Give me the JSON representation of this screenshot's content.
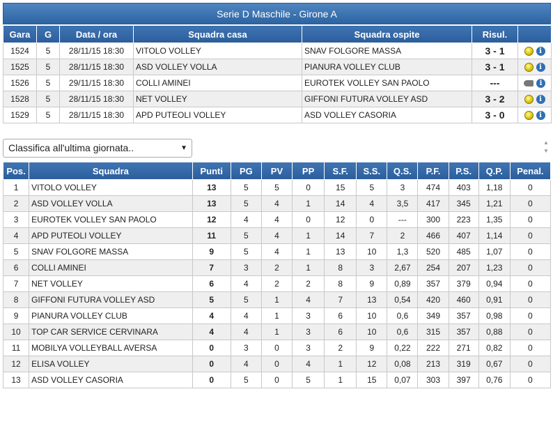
{
  "header": {
    "title": "Serie D Maschile - Girone A"
  },
  "matches": {
    "columns": [
      "Gara",
      "G",
      "Data / ora",
      "Squadra casa",
      "Squadra ospite",
      "Risul.",
      ""
    ],
    "rows": [
      {
        "gara": "1524",
        "g": "5",
        "data": "28/11/15 18:30",
        "casa": "VITOLO VOLLEY",
        "ospite": "SNAV FOLGORE MASSA",
        "risultato": "3 - 1",
        "status_icon": "volleyball-icon"
      },
      {
        "gara": "1525",
        "g": "5",
        "data": "28/11/15 18:30",
        "casa": "ASD VOLLEY VOLLA",
        "ospite": "PIANURA VOLLEY CLUB",
        "risultato": "3 - 1",
        "status_icon": "volleyball-icon"
      },
      {
        "gara": "1526",
        "g": "5",
        "data": "29/11/15 18:30",
        "casa": "COLLI AMINEI",
        "ospite": "EUROTEK VOLLEY SAN PAOLO",
        "risultato": "---",
        "status_icon": "whistle-icon"
      },
      {
        "gara": "1528",
        "g": "5",
        "data": "28/11/15 18:30",
        "casa": "NET VOLLEY",
        "ospite": "GIFFONI FUTURA VOLLEY ASD",
        "risultato": "3 - 2",
        "status_icon": "volleyball-icon"
      },
      {
        "gara": "1529",
        "g": "5",
        "data": "28/11/15 18:30",
        "casa": "APD PUTEOLI VOLLEY",
        "ospite": "ASD VOLLEY CASORIA",
        "risultato": "3 - 0",
        "status_icon": "volleyball-icon"
      }
    ]
  },
  "classifica_select": {
    "selected": "Classifica all'ultima giornata..",
    "arrow": "▼"
  },
  "standings": {
    "columns": [
      "Pos.",
      "Squadra",
      "Punti",
      "PG",
      "PV",
      "PP",
      "S.F.",
      "S.S.",
      "Q.S.",
      "P.F.",
      "P.S.",
      "Q.P.",
      "Penal."
    ],
    "rows": [
      [
        "1",
        "VITOLO VOLLEY",
        "13",
        "5",
        "5",
        "0",
        "15",
        "5",
        "3",
        "474",
        "403",
        "1,18",
        "0"
      ],
      [
        "2",
        "ASD VOLLEY VOLLA",
        "13",
        "5",
        "4",
        "1",
        "14",
        "4",
        "3,5",
        "417",
        "345",
        "1,21",
        "0"
      ],
      [
        "3",
        "EUROTEK VOLLEY SAN PAOLO",
        "12",
        "4",
        "4",
        "0",
        "12",
        "0",
        "---",
        "300",
        "223",
        "1,35",
        "0"
      ],
      [
        "4",
        "APD PUTEOLI VOLLEY",
        "11",
        "5",
        "4",
        "1",
        "14",
        "7",
        "2",
        "466",
        "407",
        "1,14",
        "0"
      ],
      [
        "5",
        "SNAV FOLGORE MASSA",
        "9",
        "5",
        "4",
        "1",
        "13",
        "10",
        "1,3",
        "520",
        "485",
        "1,07",
        "0"
      ],
      [
        "6",
        "COLLI AMINEI",
        "7",
        "3",
        "2",
        "1",
        "8",
        "3",
        "2,67",
        "254",
        "207",
        "1,23",
        "0"
      ],
      [
        "7",
        "NET VOLLEY",
        "6",
        "4",
        "2",
        "2",
        "8",
        "9",
        "0,89",
        "357",
        "379",
        "0,94",
        "0"
      ],
      [
        "8",
        "GIFFONI FUTURA VOLLEY ASD",
        "5",
        "5",
        "1",
        "4",
        "7",
        "13",
        "0,54",
        "420",
        "460",
        "0,91",
        "0"
      ],
      [
        "9",
        "PIANURA VOLLEY CLUB",
        "4",
        "4",
        "1",
        "3",
        "6",
        "10",
        "0,6",
        "349",
        "357",
        "0,98",
        "0"
      ],
      [
        "10",
        "TOP CAR SERVICE CERVINARA",
        "4",
        "4",
        "1",
        "3",
        "6",
        "10",
        "0,6",
        "315",
        "357",
        "0,88",
        "0"
      ],
      [
        "11",
        "MOBILYA VOLLEYBALL AVERSA",
        "0",
        "3",
        "0",
        "3",
        "2",
        "9",
        "0,22",
        "222",
        "271",
        "0,82",
        "0"
      ],
      [
        "12",
        "ELISA VOLLEY",
        "0",
        "4",
        "0",
        "4",
        "1",
        "12",
        "0,08",
        "213",
        "319",
        "0,67",
        "0"
      ],
      [
        "13",
        "ASD VOLLEY CASORIA",
        "0",
        "5",
        "0",
        "5",
        "1",
        "15",
        "0,07",
        "303",
        "397",
        "0,76",
        "0"
      ]
    ]
  }
}
